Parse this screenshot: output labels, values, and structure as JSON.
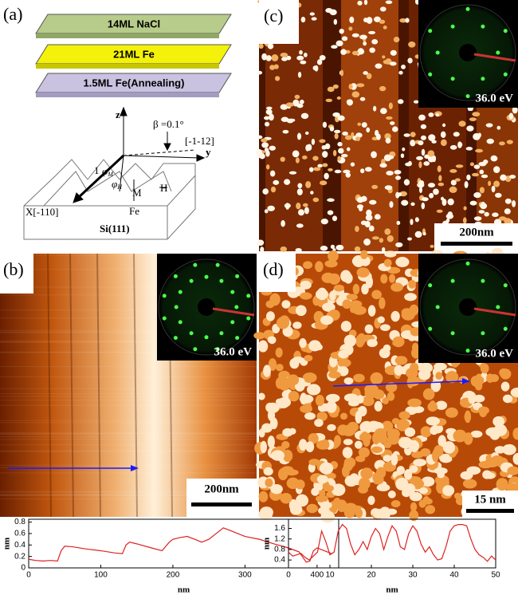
{
  "panel_a": {
    "label": "(a)",
    "layers": [
      "14ML NaCl",
      "21ML Fe",
      "1.5ML Fe(Annealing)"
    ],
    "diagram": {
      "z": "z",
      "y": "y",
      "beta": "β =0.1°",
      "direction_y": "[-1-12]",
      "unit": "1",
      "phi_m": {
        "symbol": "φ",
        "sub": "M"
      },
      "phi_h": {
        "symbol": "φ",
        "sub": "H"
      },
      "m": "M",
      "h": "H",
      "x": "X[-110]",
      "fe": "Fe",
      "substrate": "Si(111)"
    }
  },
  "panel_b": {
    "label": "(b)",
    "energy": "36.0 eV",
    "scale": "200nm"
  },
  "panel_c": {
    "label": "(c)",
    "energy": "36.0 eV",
    "scale": "200nm"
  },
  "panel_d": {
    "label": "(d)",
    "energy": "36.0 eV",
    "scale": "15 nm"
  },
  "chart_data": [
    {
      "type": "line",
      "xlabel": "nm",
      "ylabel": "nm",
      "x": [
        0,
        10,
        20,
        30,
        40,
        45,
        50,
        60,
        80,
        100,
        120,
        130,
        135,
        140,
        150,
        170,
        185,
        195,
        200,
        210,
        220,
        230,
        240,
        250,
        260,
        270,
        280,
        300,
        320,
        340,
        360,
        375,
        385,
        390,
        395,
        400,
        410,
        420
      ],
      "series": [
        {
          "color": "#e02020",
          "values": [
            0.15,
            0.13,
            0.12,
            0.13,
            0.12,
            0.3,
            0.38,
            0.37,
            0.33,
            0.3,
            0.26,
            0.25,
            0.4,
            0.45,
            0.42,
            0.35,
            0.3,
            0.45,
            0.5,
            0.53,
            0.55,
            0.5,
            0.45,
            0.5,
            0.6,
            0.7,
            0.65,
            0.55,
            0.5,
            0.42,
            0.35,
            0.28,
            0.1,
            0.12,
            0.3,
            0.35,
            0.3,
            0.25
          ]
        }
      ],
      "xlim": [
        0,
        430
      ],
      "xticks": [
        0,
        100,
        200,
        300,
        400
      ],
      "ylim": [
        0,
        0.85
      ],
      "yticks": [
        0,
        0.2,
        0.4,
        0.6,
        0.8
      ]
    },
    {
      "type": "line",
      "xlabel": "nm",
      "ylabel": "nm",
      "x": [
        0,
        1,
        2,
        3,
        4,
        5,
        6,
        7,
        8,
        9,
        10,
        11,
        12,
        13,
        14,
        15,
        16,
        17,
        18,
        19,
        20,
        21,
        22,
        23,
        24,
        25,
        26,
        27,
        28,
        29,
        30,
        31,
        32,
        33,
        34,
        35,
        36,
        37,
        38,
        39,
        40,
        41,
        42,
        43,
        44,
        45,
        46,
        47,
        48,
        49,
        50
      ],
      "series": [
        {
          "color": "#e02020",
          "values": [
            0.7,
            0.55,
            0.6,
            0.65,
            0.5,
            0.4,
            0.55,
            0.7,
            1.5,
            1.1,
            0.6,
            0.7,
            1.5,
            1.75,
            1.6,
            1.0,
            0.6,
            0.8,
            1.1,
            0.8,
            1.3,
            1.6,
            1.4,
            0.8,
            1.3,
            1.7,
            1.5,
            0.9,
            0.8,
            1.4,
            1.7,
            1.5,
            1.0,
            0.7,
            0.9,
            0.6,
            0.4,
            0.45,
            0.9,
            1.5,
            1.7,
            1.75,
            1.75,
            1.7,
            1.2,
            0.8,
            0.6,
            0.5,
            0.35,
            0.55,
            0.4
          ]
        }
      ],
      "xlim": [
        0,
        50
      ],
      "xticks": [
        0,
        10,
        20,
        30,
        40,
        50
      ],
      "ylim": [
        0.1,
        1.95
      ],
      "yticks": [
        0.4,
        0.8,
        1.2,
        1.6
      ]
    }
  ]
}
